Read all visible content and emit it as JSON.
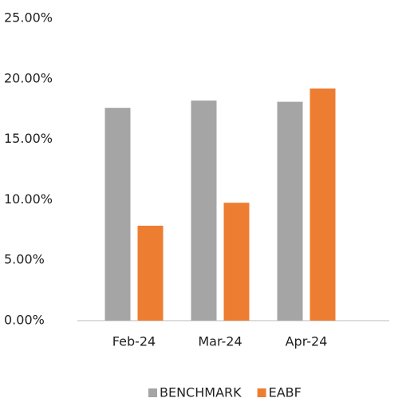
{
  "chart_data": {
    "type": "bar",
    "categories": [
      "Feb-24",
      "Mar-24",
      "Apr-24"
    ],
    "series": [
      {
        "name": "BENCHMARK",
        "color": "#a5a5a5",
        "values": [
          17.6,
          18.2,
          18.1
        ]
      },
      {
        "name": "EABF",
        "color": "#ed7d31",
        "values": [
          7.85,
          9.75,
          19.2
        ]
      }
    ],
    "ylim": [
      0,
      25
    ],
    "yticks": [
      {
        "value": 0,
        "label": "0.00%"
      },
      {
        "value": 5,
        "label": "5.00%"
      },
      {
        "value": 10,
        "label": "10.00%"
      },
      {
        "value": 15,
        "label": "15.00%"
      },
      {
        "value": 20,
        "label": "20.00%"
      },
      {
        "value": 25,
        "label": "25.00%"
      }
    ],
    "grid": false,
    "legend": "bottom"
  }
}
